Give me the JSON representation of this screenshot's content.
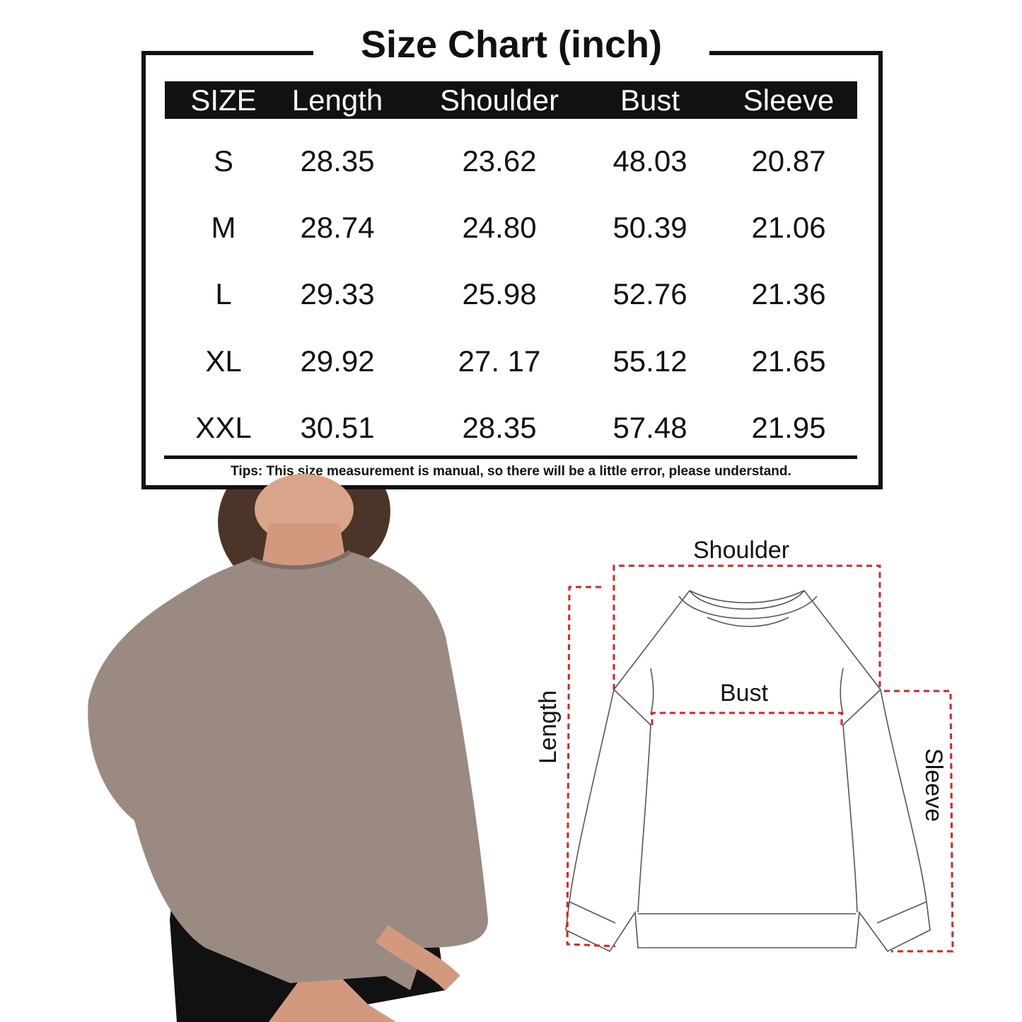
{
  "title": "Size Chart (inch)",
  "table": {
    "headers": [
      "SIZE",
      "Length",
      "Shoulder",
      "Bust",
      "Sleeve"
    ],
    "rows": [
      [
        "S",
        "28.35",
        "23.62",
        "48.03",
        "20.87"
      ],
      [
        "M",
        "28.74",
        "24.80",
        "50.39",
        "21.06"
      ],
      [
        "L",
        "29.33",
        "25.98",
        "52.76",
        "21.36"
      ],
      [
        "XL",
        "29.92",
        "27. 17",
        "55.12",
        "21.65"
      ],
      [
        "XXL",
        "30.51",
        "28.35",
        "57.48",
        "21.95"
      ]
    ]
  },
  "tips": "Tips: This size measurement is manual, so there will be a little error, please understand.",
  "diagram": {
    "shoulder": "Shoulder",
    "bust": "Bust",
    "length": "Length",
    "sleeve": "Sleeve",
    "dash_color": "#e02020"
  },
  "photo": {
    "sweatshirt_color": "#9a8a82"
  }
}
